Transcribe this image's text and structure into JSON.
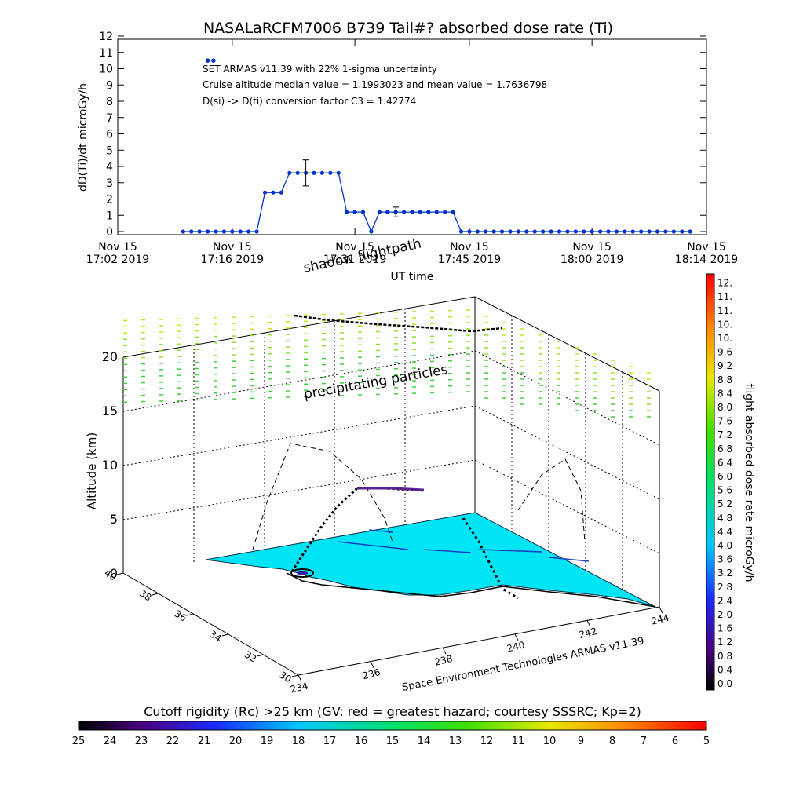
{
  "chart_data": [
    {
      "type": "line",
      "title": "NASALaRCFM7006  B739 Tail#? absorbed dose rate (Ti)",
      "ylabel": "dD(Ti)/dt microGy/h",
      "xlabel": "UT time",
      "ylim": [
        0,
        12
      ],
      "y_ticks": [
        "0",
        "1",
        "2",
        "3",
        "4",
        "5",
        "6",
        "7",
        "8",
        "9",
        "10",
        "11",
        "12"
      ],
      "x_ticks": [
        {
          "l1": "Nov 15",
          "l2": "17:02 2019",
          "t": 0
        },
        {
          "l1": "Nov 15",
          "l2": "17:16 2019",
          "t": 14
        },
        {
          "l1": "Nov 15",
          "l2": "17:31 2019",
          "t": 29
        },
        {
          "l1": "Nov 15",
          "l2": "17:45 2019",
          "t": 43
        },
        {
          "l1": "Nov 15",
          "l2": "18:00 2019",
          "t": 58
        },
        {
          "l1": "Nov 15",
          "l2": "18:14 2019",
          "t": 72
        }
      ],
      "annotations": [
        "SET ARMAS v11.39 with 22% 1-sigma uncertainty",
        "Cruise altitude median value = 1.1993023 and mean value = 1.7636798",
        "D(si) -> D(ti) conversion factor C3 = 1.42774"
      ],
      "series": [
        {
          "color": "#0033cc",
          "x": [
            8,
            9,
            10,
            11,
            12,
            13,
            14,
            15,
            16,
            17,
            18,
            19,
            20,
            21,
            22,
            23,
            24,
            25,
            26,
            27,
            28,
            29,
            30,
            31,
            32,
            33,
            34,
            35,
            36,
            37,
            38,
            39,
            40,
            41,
            42,
            43,
            44,
            45,
            46,
            47,
            48,
            49,
            50,
            51,
            52,
            53,
            54,
            55,
            56,
            57,
            58,
            59,
            60,
            61,
            62,
            63,
            64,
            65,
            66,
            67,
            68,
            69,
            70
          ],
          "y": [
            0,
            0,
            0,
            0,
            0,
            0,
            0,
            0,
            0,
            0,
            2.4,
            2.4,
            2.4,
            3.6,
            3.6,
            3.6,
            3.6,
            3.6,
            3.6,
            3.6,
            1.2,
            1.2,
            1.2,
            0,
            1.2,
            1.2,
            1.2,
            1.2,
            1.2,
            1.2,
            1.2,
            1.2,
            1.2,
            1.2,
            0,
            0,
            0,
            0,
            0,
            0,
            0,
            0,
            0,
            0,
            0,
            0,
            0,
            0,
            0,
            0,
            0,
            0,
            0,
            0,
            0,
            0,
            0,
            0,
            0,
            0,
            0,
            0,
            0
          ]
        }
      ],
      "outliers": [
        {
          "x": 11,
          "y": 10.5
        },
        {
          "x": 11.7,
          "y": 10.5
        }
      ],
      "error_bars": [
        {
          "x": 23,
          "y": 3.6,
          "low": 2.8,
          "high": 4.4
        },
        {
          "x": 34,
          "y": 1.2,
          "low": 0.9,
          "high": 1.5
        }
      ]
    },
    {
      "type": "scatter",
      "title": "",
      "zlabel": "Altitude (km)",
      "z_ticks": [
        "0",
        "5",
        "10",
        "15",
        "20"
      ],
      "lat_ticks": [
        "40",
        "38",
        "36",
        "34",
        "32",
        "30"
      ],
      "lon_ticks": [
        "234",
        "236",
        "238",
        "240",
        "242",
        "244"
      ],
      "annotations": [
        "shadow flightpath",
        "precipitating particles"
      ],
      "credit": "Space Environment Technologies ARMAS v11.39",
      "colorbar_label": "flight absorbed dose rate microGy/h",
      "colorbar_ticks": [
        "0.0",
        "0.4",
        "0.8",
        "1.2",
        "1.6",
        "2.0",
        "2.4",
        "2.8",
        "3.2",
        "3.6",
        "4.0",
        "4.4",
        "4.8",
        "5.2",
        "5.6",
        "6.0",
        "6.4",
        "6.8",
        "7.2",
        "7.6",
        "8.0",
        "8.4",
        "8.8",
        "9.2",
        "9.6",
        "10.",
        "10.",
        "11.",
        "11.",
        "12."
      ],
      "rigidity_label": "Cutoff rigidity (Rc) >25 km (GV: red = greatest hazard; courtesy SSSRC; Kp=2)",
      "rigidity_ticks": [
        "25",
        "24",
        "23",
        "22",
        "21",
        "20",
        "19",
        "18",
        "17",
        "16",
        "15",
        "14",
        "13",
        "12",
        "11",
        "10",
        "9",
        "8",
        "7",
        "6",
        "5"
      ]
    }
  ]
}
